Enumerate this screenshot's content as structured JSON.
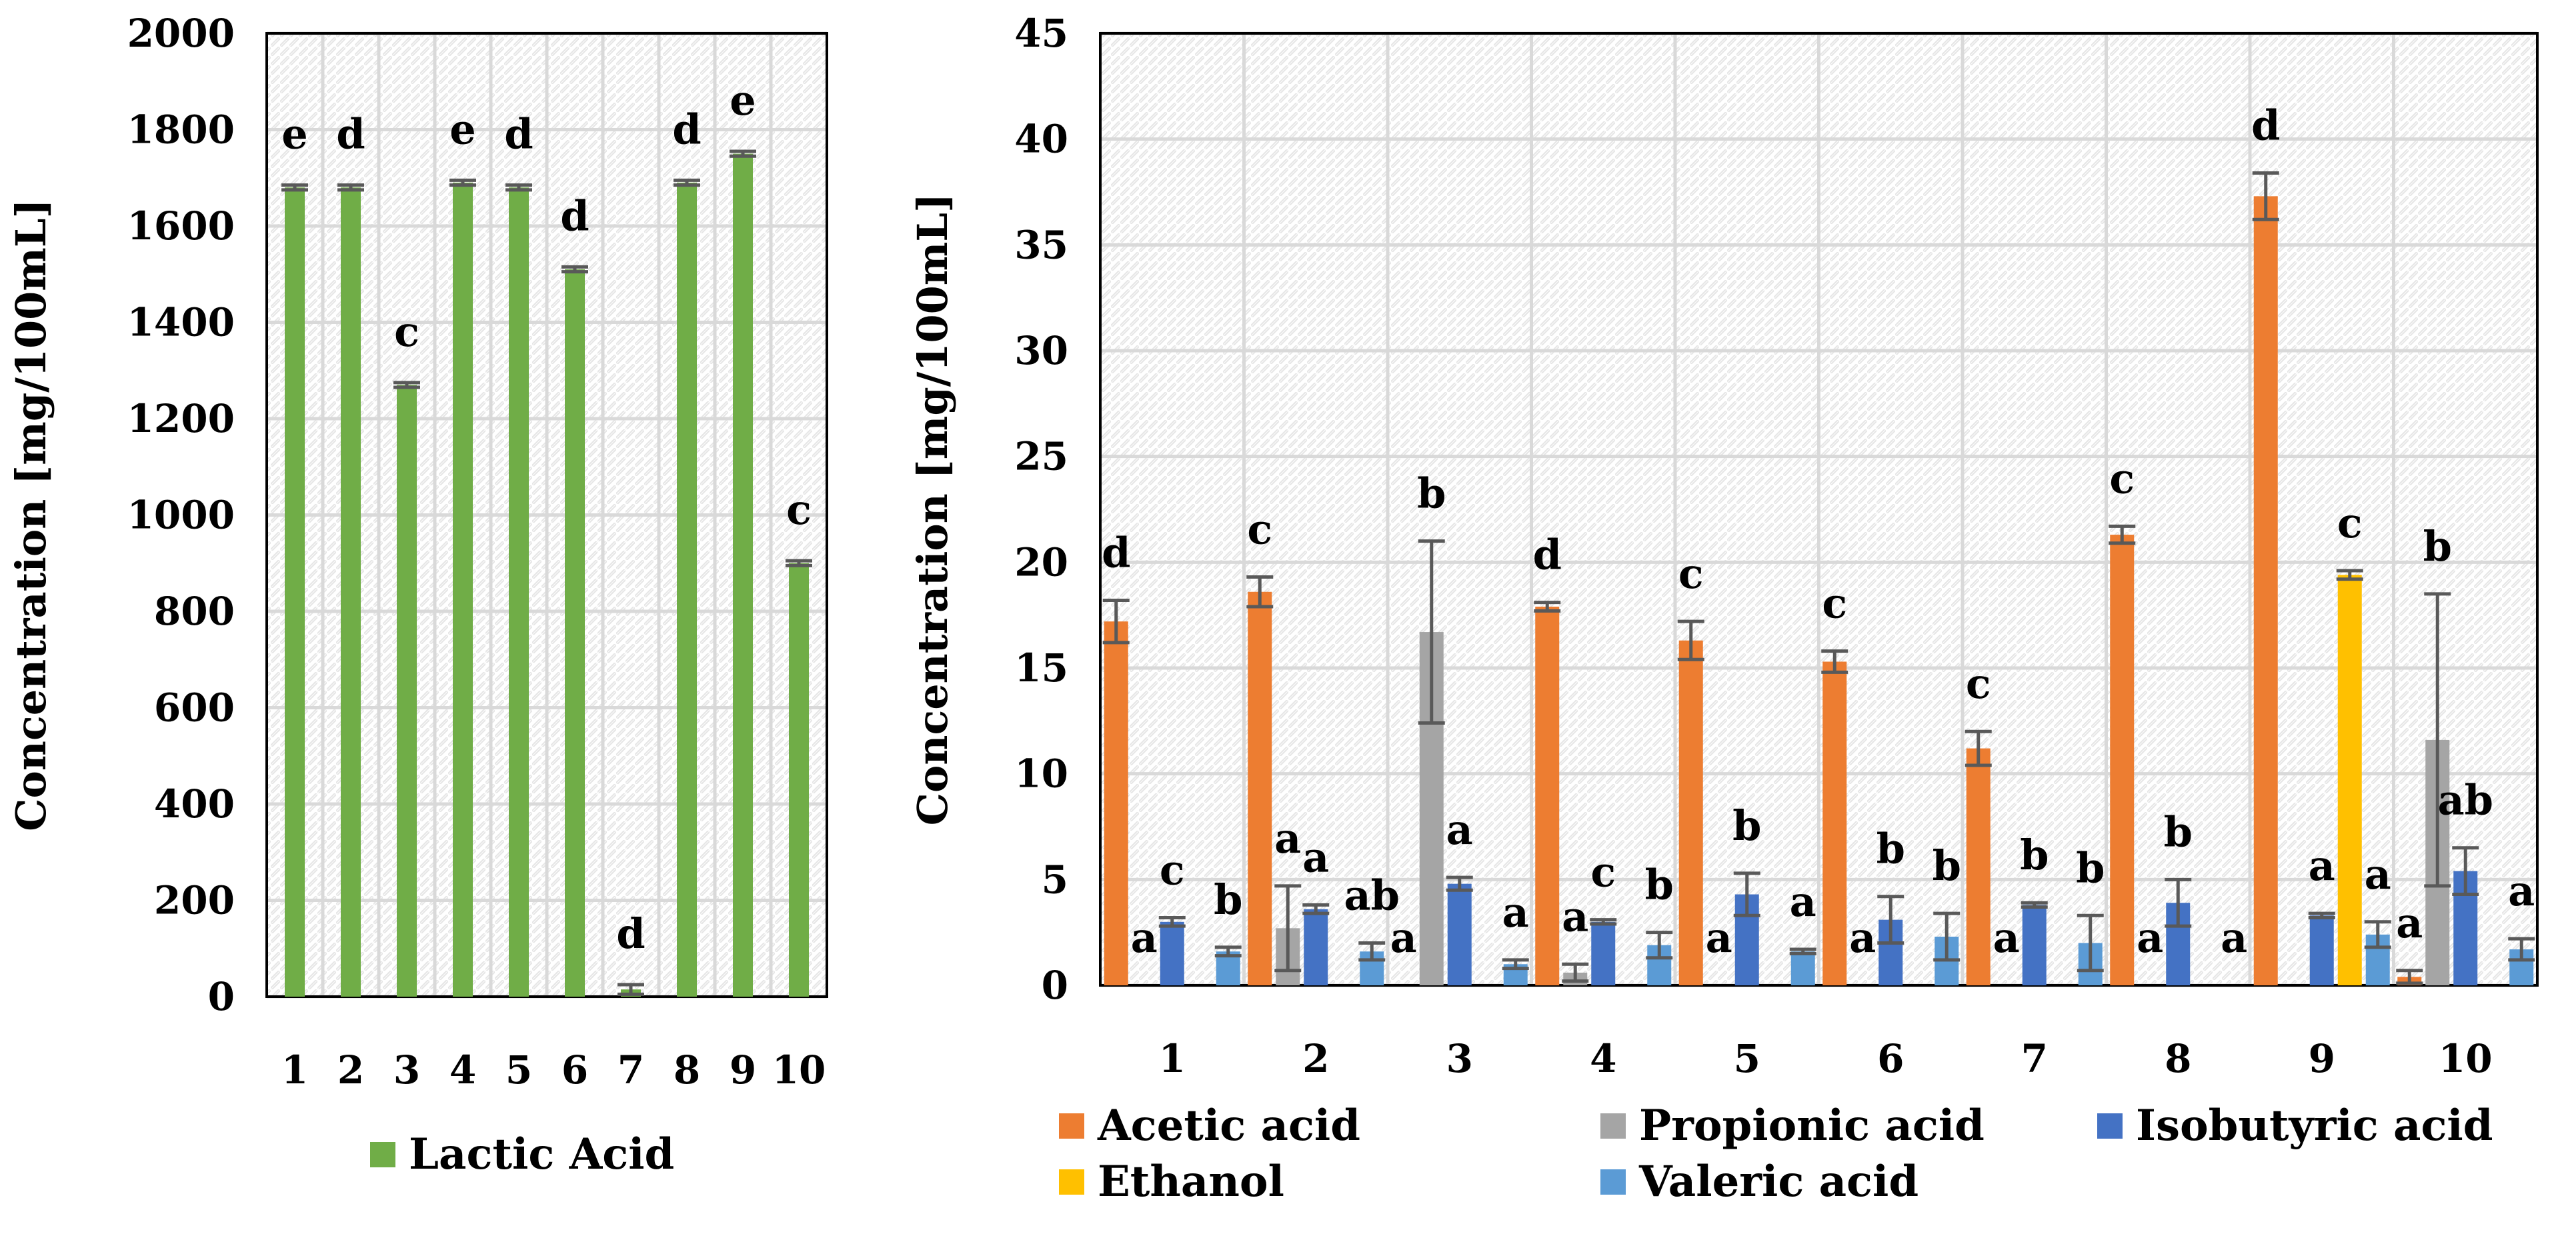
{
  "chart_data": [
    {
      "type": "bar",
      "ylabel": "Concentration [mg/100mL]",
      "ylim": [
        0,
        2000
      ],
      "yticks": [
        "0",
        "200",
        "400",
        "600",
        "800",
        "1000",
        "1200",
        "1400",
        "1600",
        "1800",
        "2000"
      ],
      "categories": [
        "1",
        "2",
        "3",
        "4",
        "5",
        "6",
        "7",
        "8",
        "9",
        "10"
      ],
      "series": [
        {
          "name": "Lactic Acid",
          "color": "#70AD47",
          "values": [
            1680,
            1680,
            1270,
            1690,
            1680,
            1510,
            15,
            1690,
            1750,
            900
          ],
          "errors": [
            5,
            5,
            5,
            5,
            5,
            5,
            10,
            5,
            5,
            5
          ],
          "labels": [
            "e",
            "d",
            "c",
            "e",
            "d",
            "d",
            "d",
            "d",
            "e",
            "c"
          ]
        }
      ],
      "grid": true,
      "legend": "bottom"
    },
    {
      "type": "bar",
      "ylabel": "Concentration [mg/100mL]",
      "ylim": [
        0,
        45
      ],
      "yticks": [
        "0",
        "5",
        "10",
        "15",
        "20",
        "25",
        "30",
        "35",
        "40",
        "45"
      ],
      "categories": [
        "1",
        "2",
        "3",
        "4",
        "5",
        "6",
        "7",
        "8",
        "9",
        "10"
      ],
      "series": [
        {
          "name": "Acetic acid",
          "color": "#ED7D31",
          "values": [
            17.2,
            18.6,
            0,
            17.9,
            16.3,
            15.3,
            11.2,
            21.3,
            37.3,
            0.4
          ],
          "errors": [
            1.0,
            0.7,
            0,
            0.2,
            0.9,
            0.5,
            0.8,
            0.4,
            1.1,
            0.3
          ],
          "labels": [
            "d",
            "c",
            "a",
            "d",
            "c",
            "c",
            "c",
            "c",
            "d",
            "a"
          ]
        },
        {
          "name": "Propionic acid",
          "color": "#A5A5A5",
          "values": [
            0,
            2.7,
            16.7,
            0.6,
            0,
            0,
            0,
            0,
            0,
            11.6
          ],
          "errors": [
            0,
            2.0,
            4.3,
            0.4,
            0,
            0,
            0,
            0,
            0,
            6.9
          ],
          "labels": [
            "a",
            "a",
            "b",
            "a",
            "a",
            "a",
            "a",
            "a",
            "",
            "b"
          ]
        },
        {
          "name": "Isobutyric acid",
          "color": "#4472C4",
          "values": [
            3.0,
            3.6,
            4.8,
            3.0,
            4.3,
            3.1,
            3.8,
            3.9,
            3.3,
            5.4
          ],
          "errors": [
            0.2,
            0.2,
            0.3,
            0.1,
            1.0,
            1.1,
            0.1,
            1.1,
            0.1,
            1.1
          ],
          "labels": [
            "c",
            "a",
            "a",
            "c",
            "b",
            "b",
            "b",
            "b",
            "a",
            "ab"
          ]
        },
        {
          "name": "Ethanol",
          "color": "#FFC000",
          "values": [
            0,
            0,
            0,
            0,
            0,
            0,
            0,
            0,
            19.4,
            0
          ],
          "errors": [
            0,
            0,
            0,
            0,
            0,
            0,
            0,
            0,
            0.2,
            0
          ],
          "labels": [
            "",
            "",
            "",
            "",
            "",
            "",
            "",
            "",
            "c",
            ""
          ]
        },
        {
          "name": "Valeric acid",
          "color": "#5B9BD5",
          "values": [
            1.6,
            1.6,
            1.0,
            1.9,
            1.6,
            2.3,
            2.0,
            0,
            2.4,
            1.7
          ],
          "errors": [
            0.2,
            0.4,
            0.2,
            0.6,
            0.1,
            1.1,
            1.3,
            0,
            0.6,
            0.5
          ],
          "labels": [
            "b",
            "ab",
            "a",
            "b",
            "a",
            "b",
            "b",
            "a",
            "a",
            "a"
          ]
        }
      ],
      "grid": true,
      "legend": "bottom"
    }
  ]
}
